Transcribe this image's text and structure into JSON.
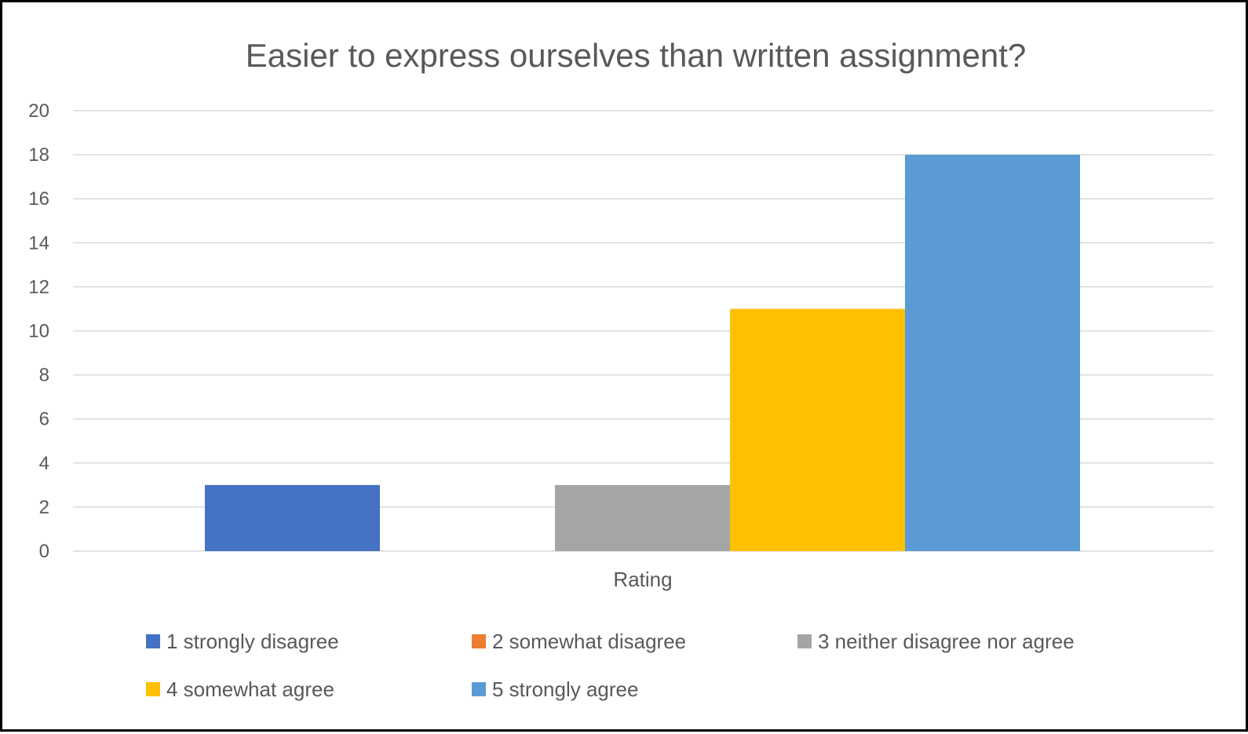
{
  "chart_data": {
    "type": "bar",
    "title": "Easier to express ourselves than written assignment?",
    "xlabel": "Rating",
    "ylabel": "",
    "ylim": [
      0,
      20
    ],
    "yticks": [
      0,
      2,
      4,
      6,
      8,
      10,
      12,
      14,
      16,
      18,
      20
    ],
    "categories": [
      "Rating"
    ],
    "grid": true,
    "legend_position": "bottom",
    "series": [
      {
        "name": "1 strongly disagree",
        "values": [
          3
        ],
        "color": "#4472C4"
      },
      {
        "name": "2 somewhat disagree",
        "values": [
          0
        ],
        "color": "#ED7D31"
      },
      {
        "name": "3 neither disagree nor agree",
        "values": [
          3
        ],
        "color": "#A5A5A5"
      },
      {
        "name": "4 somewhat agree",
        "values": [
          11
        ],
        "color": "#FFC000"
      },
      {
        "name": "5 strongly agree",
        "values": [
          18
        ],
        "color": "#5B9BD5"
      }
    ]
  }
}
